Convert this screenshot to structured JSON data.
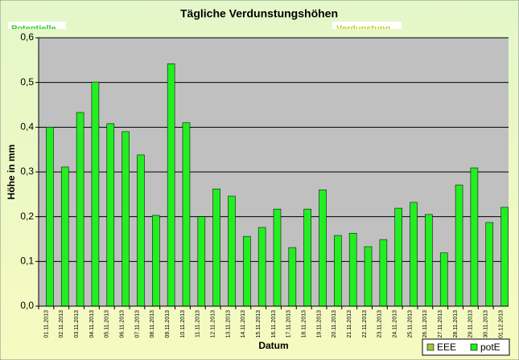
{
  "chart_data": {
    "type": "bar",
    "title": "Tägliche Verdunstungshöhen",
    "annotations": [
      "Potentielle",
      "Verdunstung"
    ],
    "x_label": "Datum",
    "y_label": "Höhe in mm",
    "categories": [
      "01.11.2013",
      "02.11.2013",
      "03.11.2013",
      "04.11.2013",
      "05.11.2013",
      "06.11.2013",
      "07.11.2013",
      "08.11.2013",
      "09.11.2013",
      "10.11.2013",
      "11.11.2013",
      "12.11.2013",
      "13.11.2013",
      "14.11.2013",
      "15.11.2013",
      "16.11.2013",
      "17.11.2013",
      "18.11.2013",
      "19.11.2013",
      "20.11.2013",
      "21.11.2013",
      "22.11.2013",
      "23.11.2013",
      "24.11.2013",
      "25.11.2013",
      "26.11.2013",
      "27.11.2013",
      "28.11.2013",
      "29.11.2013",
      "30.11.2013",
      "01.12.2013"
    ],
    "series": [
      {
        "name": "EEE",
        "color": "#99cc33",
        "values": [
          null,
          null,
          null,
          null,
          null,
          null,
          null,
          null,
          null,
          null,
          null,
          null,
          null,
          null,
          null,
          null,
          null,
          null,
          null,
          null,
          null,
          null,
          null,
          null,
          null,
          null,
          null,
          null,
          null,
          null,
          null
        ]
      },
      {
        "name": "potE",
        "color": "#22ee22",
        "values": [
          0.4,
          0.311,
          0.433,
          0.501,
          0.408,
          0.39,
          0.338,
          0.203,
          0.542,
          0.41,
          0.2,
          0.262,
          0.246,
          0.156,
          0.176,
          0.217,
          0.131,
          0.217,
          0.26,
          0.158,
          0.163,
          0.133,
          0.149,
          0.219,
          0.232,
          0.205,
          0.119,
          0.271,
          0.309,
          0.187,
          0.221
        ]
      }
    ],
    "ylim": [
      0,
      0.6
    ],
    "yticks": [
      {
        "value": 0,
        "label": "0,0"
      },
      {
        "value": 0.1,
        "label": "0,1"
      },
      {
        "value": 0.2,
        "label": "0,2"
      },
      {
        "value": 0.3,
        "label": "0,3"
      },
      {
        "value": 0.4,
        "label": "0,4"
      },
      {
        "value": 0.5,
        "label": "0,5"
      },
      {
        "value": 0.6,
        "label": "0,6"
      }
    ],
    "grid": true,
    "legend": "bottom-right"
  }
}
